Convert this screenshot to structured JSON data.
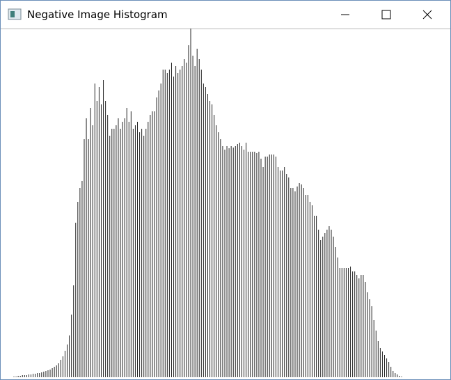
{
  "window": {
    "title": "Negative Image Histogram"
  },
  "chart_data": {
    "type": "bar",
    "color": "#222222",
    "ylim": [
      0,
      501
    ],
    "values": [
      1,
      1,
      2,
      2,
      3,
      3,
      3,
      4,
      4,
      5,
      5,
      6,
      6,
      7,
      8,
      9,
      10,
      11,
      13,
      15,
      17,
      20,
      25,
      30,
      38,
      47,
      60,
      90,
      132,
      222,
      252,
      272,
      282,
      342,
      372,
      342,
      387,
      362,
      422,
      397,
      417,
      392,
      427,
      397,
      377,
      347,
      357,
      357,
      362,
      372,
      357,
      367,
      372,
      387,
      367,
      382,
      357,
      362,
      367,
      352,
      357,
      347,
      357,
      367,
      377,
      382,
      382,
      402,
      412,
      422,
      442,
      442,
      437,
      442,
      452,
      432,
      447,
      437,
      442,
      447,
      457,
      452,
      477,
      501,
      462,
      447,
      472,
      457,
      442,
      422,
      417,
      407,
      397,
      392,
      377,
      362,
      352,
      342,
      332,
      327,
      332,
      329,
      332,
      330,
      332,
      335,
      337,
      332,
      327,
      337,
      324,
      324,
      324,
      324,
      322,
      324,
      314,
      302,
      317,
      317,
      320,
      320,
      320,
      317,
      302,
      297,
      297,
      302,
      292,
      287,
      272,
      272,
      267,
      274,
      279,
      277,
      272,
      262,
      262,
      252,
      247,
      232,
      232,
      212,
      197,
      202,
      207,
      212,
      217,
      212,
      202,
      187,
      172,
      157,
      157,
      157,
      157,
      157,
      159,
      152,
      152,
      147,
      142,
      147,
      147,
      137,
      122,
      112,
      102,
      82,
      67,
      52,
      42,
      37,
      32,
      27,
      22,
      15,
      9,
      6,
      4,
      2,
      1
    ]
  }
}
